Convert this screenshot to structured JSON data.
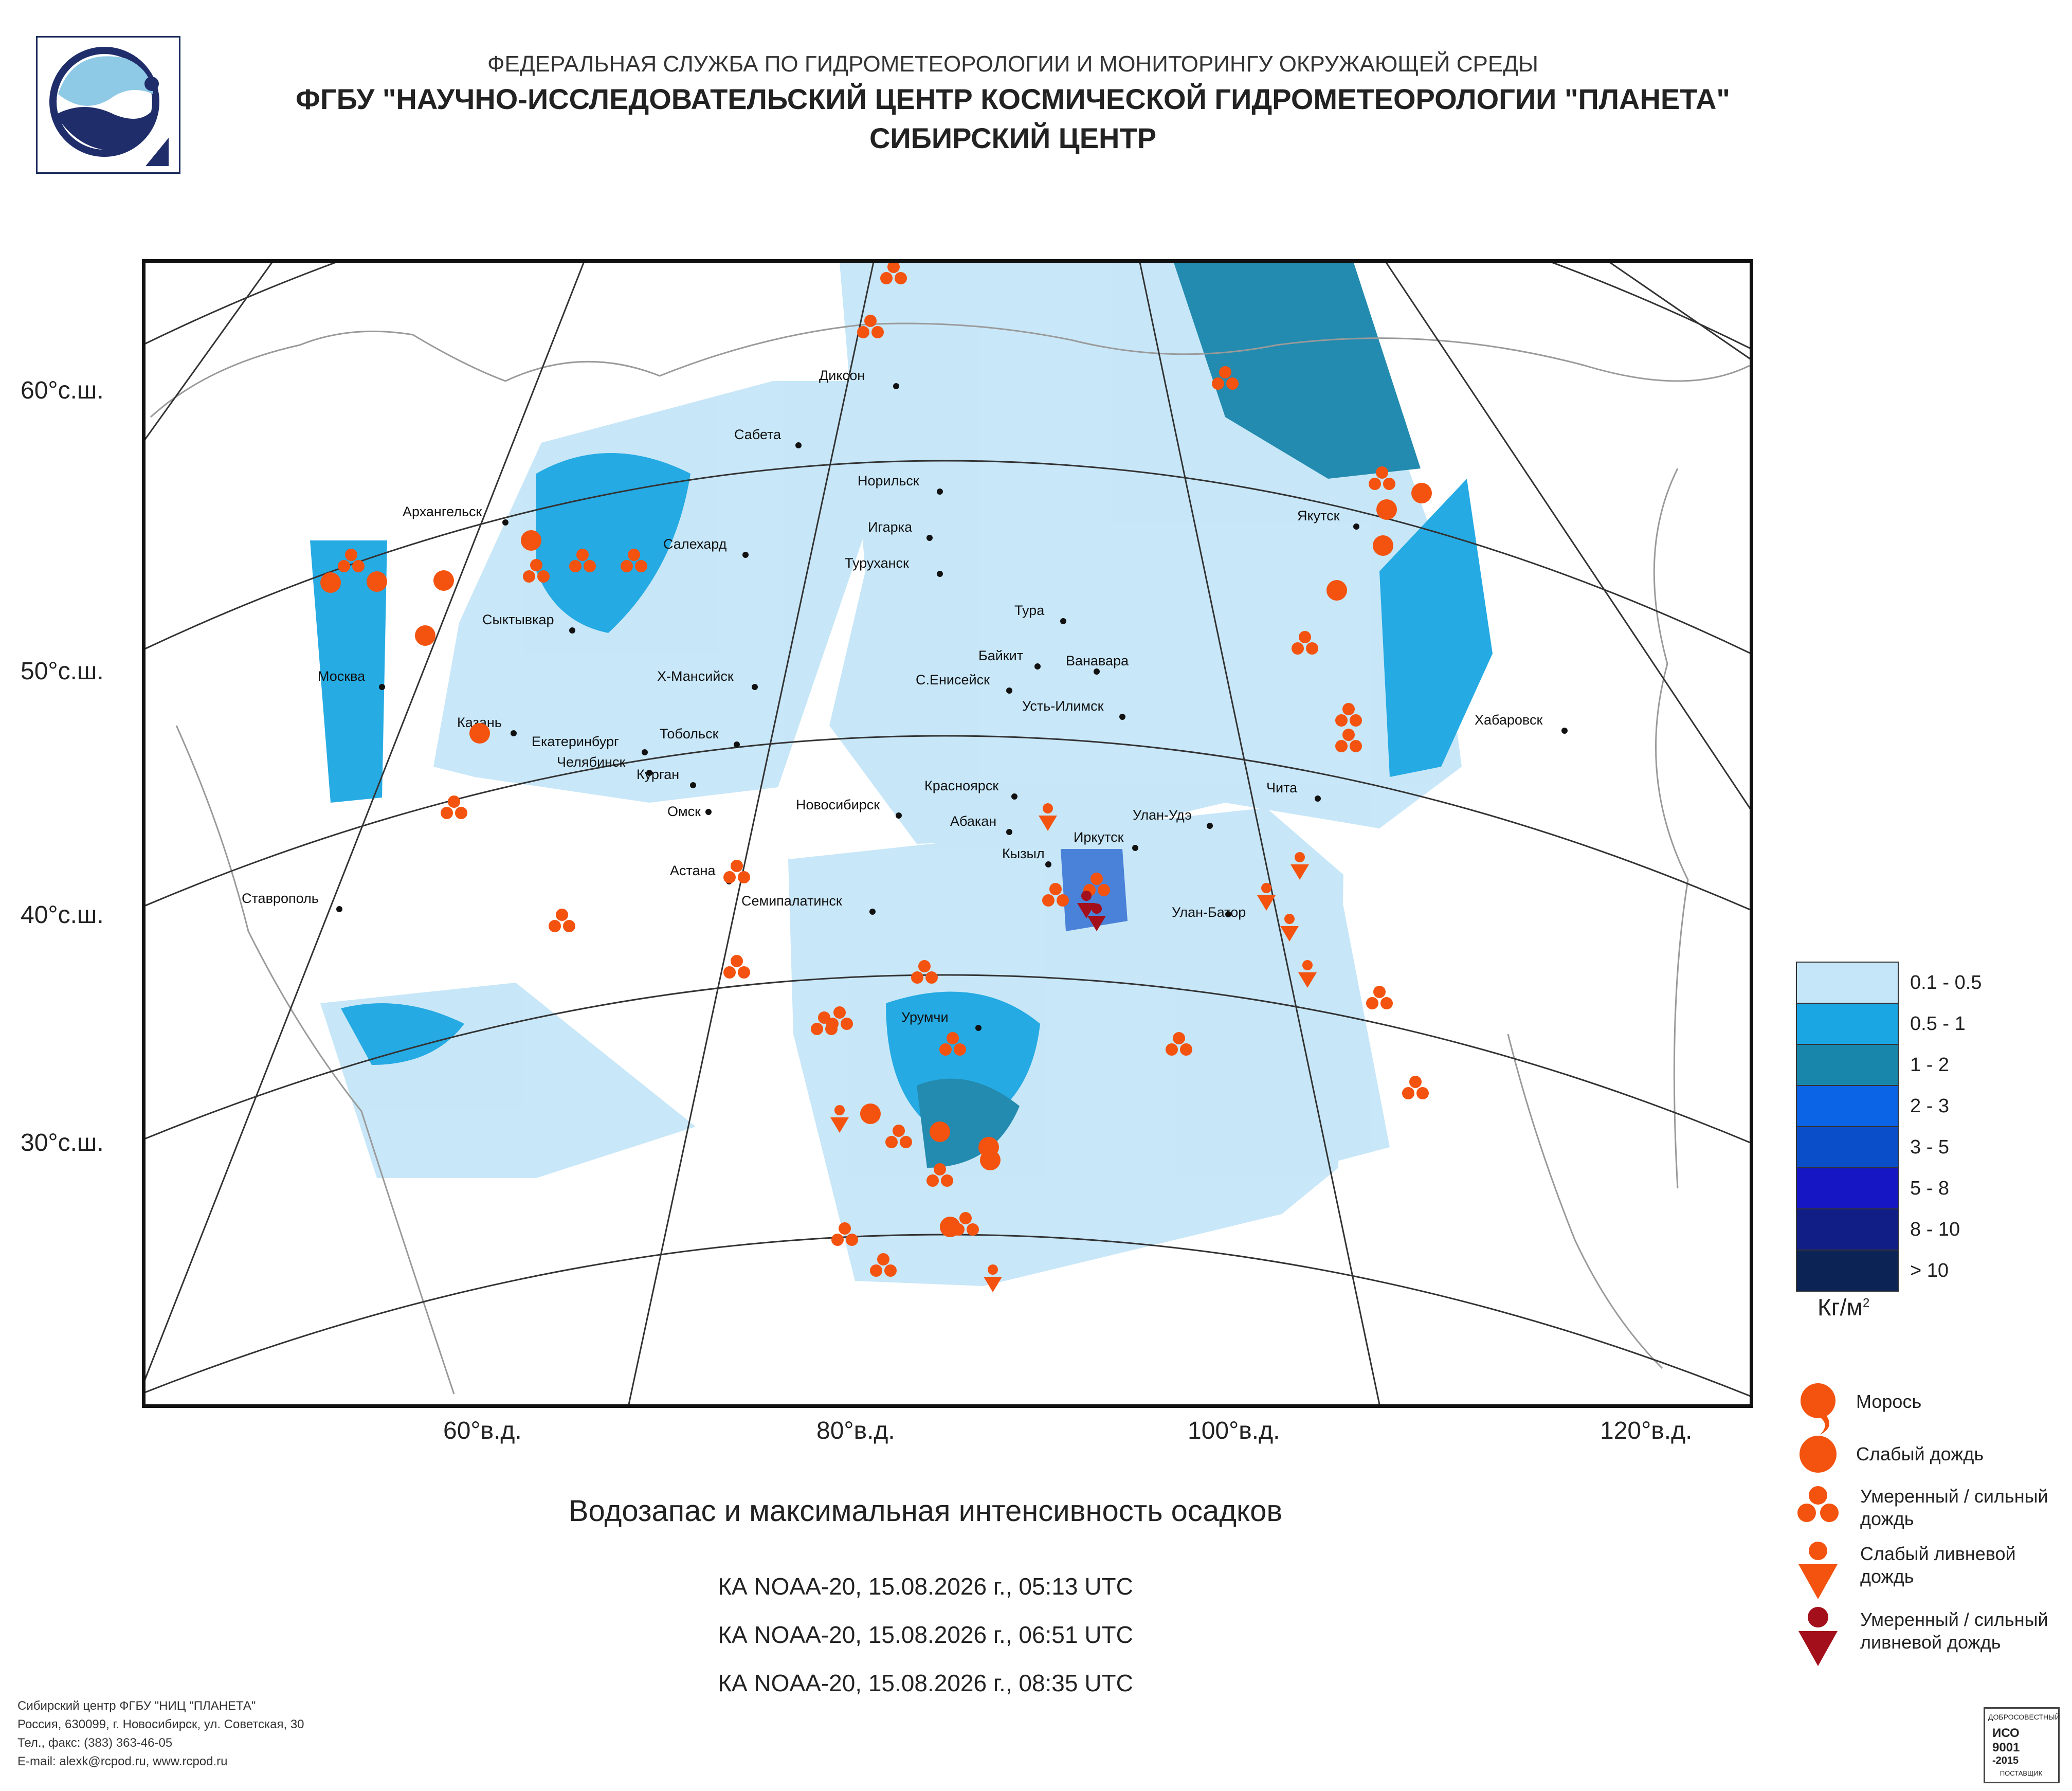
{
  "header": {
    "line1": "ФЕДЕРАЛЬНАЯ СЛУЖБА ПО ГИДРОМЕТЕОРОЛОГИИ И МОНИТОРИНГУ ОКРУЖАЮЩЕЙ СРЕДЫ",
    "line2": "ФГБУ \"НАУЧНО-ИССЛЕДОВАТЕЛЬСКИЙ ЦЕНТР КОСМИЧЕСКОЙ ГИДРОМЕТЕОРОЛОГИИ \"ПЛАНЕТА\"",
    "line3": "СИБИРСКИЙ ЦЕНТР"
  },
  "map": {
    "lat_labels": [
      "60°с.ш.",
      "50°с.ш.",
      "40°с.ш.",
      "30°с.ш."
    ],
    "lon_labels": [
      "60°в.д.",
      "80°в.д.",
      "100°в.д.",
      "120°в.д."
    ],
    "cities": [
      "Диксон",
      "Сабета",
      "Норильск",
      "Игарка",
      "Туруханск",
      "Архангельск",
      "Салехард",
      "Тура",
      "Якутск",
      "Сыктывкар",
      "Байкит",
      "Ванавара",
      "Х-Мансийск",
      "С.Енисейск",
      "Москва",
      "Усть-Илимск",
      "Хабаровск",
      "Казань",
      "Тобольск",
      "Екатеринбург",
      "Челябинск",
      "Курган",
      "Омск",
      "Красноярск",
      "Чита",
      "Новосибирск",
      "Абакан",
      "Улан-Удэ",
      "Иркутск",
      "Кызыл",
      "Астана",
      "Семипалатинск",
      "Улан-Батор",
      "Ставрополь",
      "Урумчи"
    ]
  },
  "title": "Водозапас и максимальная интенсивность осадков",
  "passes": [
    "КА NOAA-20, 15.08.2026 г., 05:13 UTC",
    "КА NOAA-20, 15.08.2026 г., 06:51 UTC",
    "КА NOAA-20, 15.08.2026 г., 08:35 UTC"
  ],
  "legend": {
    "bins": [
      {
        "label": "0.1 - 0.5",
        "color": "#c5e6f8"
      },
      {
        "label": "0.5 - 1",
        "color": "#1aa6e2"
      },
      {
        "label": "1 - 2",
        "color": "#1885ab"
      },
      {
        "label": "2 - 3",
        "color": "#0b63e6"
      },
      {
        "label": "3 - 5",
        "color": "#0a4fc9"
      },
      {
        "label": "5 - 8",
        "color": "#1616c4"
      },
      {
        "label": "8 - 10",
        "color": "#111e86"
      },
      {
        "label": "> 10",
        "color": "#0b2455"
      }
    ],
    "unit_base": "Кг/м",
    "unit_sup": "2",
    "symbols": {
      "drizzle": "Морось",
      "light_rain": "Слабый дождь",
      "moderate_rain_1": "Умеренный / сильный",
      "moderate_rain_2": "дождь",
      "light_shower_1": "Слабый ливневой",
      "light_shower_2": "дождь",
      "heavy_shower_1": "Умеренный / сильный",
      "heavy_shower_2": "ливневой дождь"
    },
    "symbol_colors": {
      "rain": "#f4520f",
      "heavy_shower": "#a30f1a"
    }
  },
  "footer": {
    "line1": "Сибирский центр ФГБУ \"НИЦ \"ПЛАНЕТА\"",
    "line2": "Россия, 630099, г. Новосибирск, ул. Советская, 30",
    "line3": "Тел., факс: (383) 363-46-05",
    "line4": "E-mail: alexk@rcpod.ru, www.rcpod.ru"
  },
  "certificate": {
    "line1": "ДОБРОСОВЕСТНЫЙ",
    "line2": "ИСО",
    "line3": "9001",
    "line4": "-2015",
    "line5": "ПОСТАВЩИК"
  }
}
